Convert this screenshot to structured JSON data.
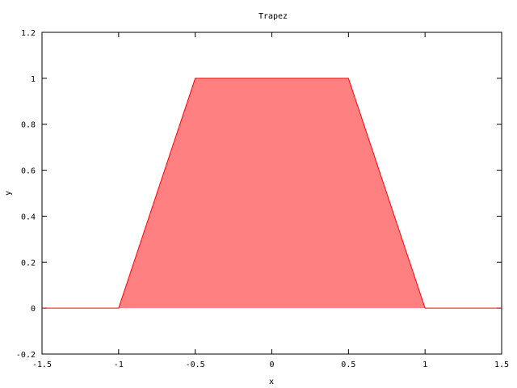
{
  "chart_data": {
    "type": "area",
    "title": "Trapez",
    "xlabel": "x",
    "ylabel": "y",
    "xlim": [
      -1.5,
      1.5
    ],
    "ylim": [
      -0.2,
      1.2
    ],
    "x_ticks": [
      "-1.5",
      "-1",
      "-0.5",
      "0",
      "0.5",
      "1",
      "1.5"
    ],
    "y_ticks": [
      "-0.2",
      "0",
      "0.2",
      "0.4",
      "0.6",
      "0.8",
      "1",
      "1.2"
    ],
    "grid": false,
    "legend": "none",
    "series": [
      {
        "x": [
          -1.5,
          -1.0,
          -0.5,
          0.5,
          1.0,
          1.5
        ],
        "y": [
          0,
          0,
          1,
          1,
          0,
          0
        ],
        "color": "#ff0000",
        "fill": "#ff8080"
      }
    ]
  }
}
